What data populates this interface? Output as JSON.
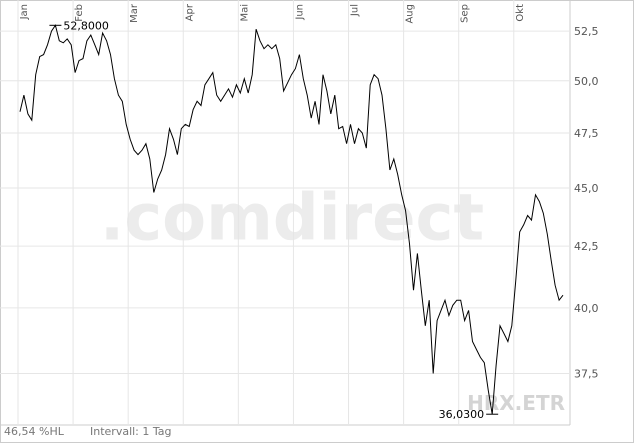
{
  "chart_data": {
    "type": "line",
    "symbol": "HRX.ETR",
    "watermark": ".comdirect",
    "footer_left": "46,54 %HL",
    "footer_interval": "Intervall: 1 Tag",
    "high_label": "52,8000",
    "low_label": "36,0300",
    "color": "#000000",
    "log_scale": true,
    "grid": true,
    "ylim": [
      35.65,
      53.6
    ],
    "yticks": [
      {
        "value": 37.5,
        "label": "37,5"
      },
      {
        "value": 40,
        "label": "40,0"
      },
      {
        "value": 42.5,
        "label": "42,5"
      },
      {
        "value": 45,
        "label": "45,0"
      },
      {
        "value": 47.5,
        "label": "47,5"
      },
      {
        "value": 50,
        "label": "50,0"
      },
      {
        "value": 52.5,
        "label": "52,5"
      }
    ],
    "categories": [
      "Jan",
      null,
      null,
      null,
      null,
      null,
      null,
      null,
      null,
      null,
      null,
      null,
      null,
      null,
      "Feb",
      null,
      null,
      null,
      null,
      null,
      null,
      null,
      null,
      null,
      null,
      null,
      null,
      null,
      "Mar",
      null,
      null,
      null,
      null,
      null,
      null,
      null,
      null,
      null,
      null,
      null,
      null,
      null,
      "Apr",
      null,
      null,
      null,
      null,
      null,
      null,
      null,
      null,
      null,
      null,
      null,
      null,
      null,
      "Mai",
      null,
      null,
      null,
      null,
      null,
      null,
      null,
      null,
      null,
      null,
      null,
      null,
      null,
      "Jun",
      null,
      null,
      null,
      null,
      null,
      null,
      null,
      null,
      null,
      null,
      null,
      null,
      null,
      "Jul",
      null,
      null,
      null,
      null,
      null,
      null,
      null,
      null,
      null,
      null,
      null,
      null,
      null,
      "Aug",
      null,
      null,
      null,
      null,
      null,
      null,
      null,
      null,
      null,
      null,
      null,
      null,
      null,
      "Sep",
      null,
      null,
      null,
      null,
      null,
      null,
      null,
      null,
      null,
      null,
      null,
      null,
      null,
      "Okt",
      null,
      null,
      null,
      null,
      null,
      null,
      null,
      null,
      null,
      null,
      null,
      null
    ],
    "values": [
      48.5,
      49.3,
      48.4,
      48.1,
      50.3,
      51.2,
      51.3,
      51.8,
      52.5,
      52.8,
      52.0,
      51.9,
      52.1,
      51.8,
      50.4,
      51.0,
      51.1,
      52.0,
      52.3,
      51.8,
      51.3,
      52.4,
      52.0,
      51.3,
      50.1,
      49.3,
      49.0,
      47.9,
      47.2,
      46.7,
      46.5,
      46.7,
      47.0,
      46.3,
      44.8,
      45.4,
      45.8,
      46.5,
      47.7,
      47.2,
      46.5,
      47.7,
      47.9,
      47.8,
      48.6,
      49.0,
      48.8,
      49.8,
      50.1,
      50.4,
      49.3,
      49.0,
      49.3,
      49.6,
      49.2,
      49.8,
      49.4,
      50.1,
      49.4,
      50.3,
      52.6,
      52.0,
      51.6,
      51.8,
      51.6,
      51.8,
      51.1,
      49.5,
      49.9,
      50.3,
      50.6,
      51.3,
      50.1,
      49.3,
      48.2,
      49.0,
      47.9,
      50.3,
      49.5,
      48.4,
      49.3,
      47.7,
      47.8,
      47.0,
      47.9,
      47.0,
      47.7,
      47.5,
      46.8,
      49.8,
      50.3,
      50.1,
      49.3,
      47.7,
      45.8,
      46.3,
      45.6,
      44.7,
      44.0,
      42.6,
      40.7,
      42.2,
      40.7,
      39.3,
      40.3,
      37.5,
      39.5,
      39.9,
      40.3,
      39.7,
      40.1,
      40.3,
      40.3,
      39.5,
      39.9,
      38.7,
      38.4,
      38.1,
      37.9,
      36.9,
      36.03,
      37.8,
      39.3,
      39.0,
      38.7,
      39.3,
      41.1,
      43.1,
      43.4,
      43.8,
      43.6,
      44.7,
      44.4,
      43.9,
      43.0,
      41.9,
      40.9,
      40.3,
      40.5
    ]
  }
}
